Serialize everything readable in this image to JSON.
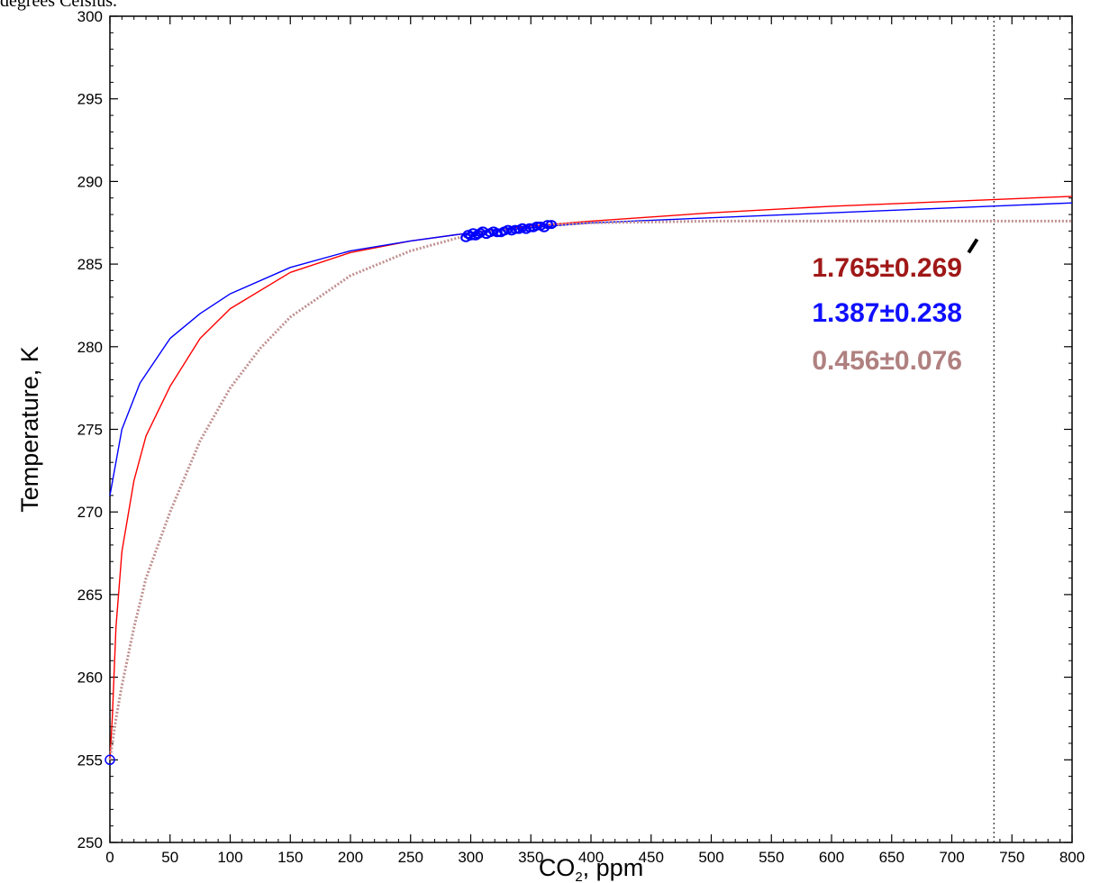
{
  "caption": "degrees Celsius.",
  "chart_data": {
    "type": "line",
    "xlabel": "CO",
    "xlabel_subscript": "2",
    "xlabel_suffix": ", ppm",
    "ylabel": "Temperature, K",
    "xlim": [
      0,
      800
    ],
    "ylim": [
      250,
      300
    ],
    "x_ticks": [
      0,
      50,
      100,
      150,
      200,
      250,
      300,
      350,
      400,
      450,
      500,
      550,
      600,
      650,
      700,
      750,
      800
    ],
    "y_ticks": [
      250,
      255,
      260,
      265,
      270,
      275,
      280,
      285,
      290,
      295,
      300
    ],
    "grid": false,
    "reference_line": {
      "x": 735,
      "style": "dotted"
    },
    "series": [
      {
        "color": "#ff0000",
        "style": "solid",
        "x": [
          0,
          2,
          5,
          10,
          20,
          30,
          50,
          75,
          100,
          150,
          200,
          250,
          300,
          350,
          400,
          500,
          600,
          700,
          800
        ],
        "y": [
          255.0,
          257.6,
          263.0,
          267.6,
          271.9,
          274.6,
          277.6,
          280.5,
          282.3,
          284.5,
          285.7,
          286.4,
          286.9,
          287.3,
          287.6,
          288.1,
          288.5,
          288.8,
          289.1
        ]
      },
      {
        "color": "#0000ff",
        "style": "solid",
        "x": [
          0,
          10,
          25,
          50,
          75,
          100,
          150,
          200,
          250,
          300,
          350,
          400,
          500,
          600,
          700,
          800
        ],
        "y": [
          271.0,
          275.0,
          277.8,
          280.5,
          282.0,
          283.2,
          284.8,
          285.8,
          286.4,
          286.9,
          287.2,
          287.5,
          287.8,
          288.1,
          288.4,
          288.7
        ]
      },
      {
        "color": "#c09090",
        "style": "dotted",
        "x": [
          0,
          5,
          10,
          20,
          30,
          50,
          75,
          100,
          125,
          150,
          200,
          250,
          300,
          350,
          400,
          500,
          600,
          700,
          800
        ],
        "y": [
          255.0,
          257.5,
          259.5,
          263.0,
          266.0,
          270.0,
          274.3,
          277.5,
          279.9,
          281.8,
          284.3,
          285.8,
          286.8,
          287.3,
          287.5,
          287.6,
          287.6,
          287.6,
          287.6
        ]
      }
    ],
    "observed_points": {
      "color": "#0000ff",
      "marker": "circle",
      "x": [
        296,
        298,
        300,
        302,
        304,
        306,
        308,
        310,
        313,
        316,
        319,
        322,
        325,
        328,
        331,
        334,
        337,
        340,
        343,
        346,
        349,
        352,
        355,
        358,
        361,
        364,
        367
      ],
      "y": [
        286.6,
        286.8,
        286.7,
        286.9,
        286.7,
        286.8,
        286.9,
        287.0,
        286.8,
        286.9,
        287.0,
        286.9,
        286.9,
        287.0,
        287.1,
        287.0,
        287.1,
        287.1,
        287.2,
        287.1,
        287.2,
        287.2,
        287.3,
        287.3,
        287.2,
        287.4,
        287.4
      ]
    },
    "start_marker": {
      "x": 0,
      "y": 255.0,
      "color": "#0000ff"
    },
    "annotations": [
      {
        "text": "1.765±0.269",
        "color": "#a01818"
      },
      {
        "text": "1.387±0.238",
        "color": "#1010ff"
      },
      {
        "text": "0.456±0.076",
        "color": "#b08080"
      }
    ],
    "annotation_pointer": {
      "from": [
        714,
        285.7
      ],
      "to": [
        721,
        286.5
      ]
    }
  }
}
